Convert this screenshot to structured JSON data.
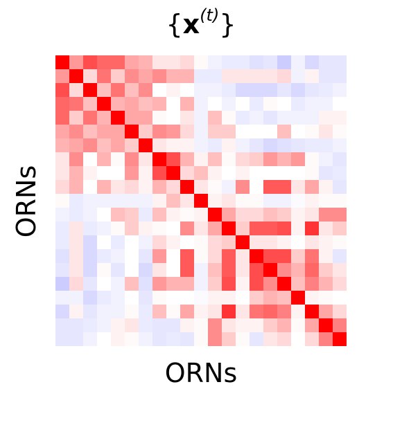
{
  "chart_data": {
    "type": "heatmap",
    "title_text": "{x(t)}",
    "title_parts": {
      "open": "{",
      "var": "x",
      "sup": "(t)",
      "close": "}"
    },
    "xlabel": "ORNs",
    "ylabel": "ORNs",
    "colormap": {
      "negative": "#0000ff",
      "zero": "#ffffff",
      "positive": "#ff0000"
    },
    "vmin": -1,
    "vmax": 1,
    "values": [
      [
        1.0,
        0.4,
        0.7,
        0.6,
        0.6,
        0.35,
        0.3,
        0.1,
        0.1,
        0.15,
        0.02,
        -0.05,
        -0.08,
        -0.08,
        -0.12,
        -0.1,
        -0.2,
        -0.05,
        -0.15,
        -0.1,
        -0.1
      ],
      [
        0.4,
        1.0,
        0.15,
        0.55,
        0.2,
        0.45,
        0.35,
        0.45,
        0.3,
        0.3,
        -0.08,
        -0.08,
        0.1,
        0.1,
        0.1,
        0.1,
        0.15,
        -0.05,
        0.05,
        -0.1,
        -0.1
      ],
      [
        0.7,
        0.15,
        1.0,
        0.25,
        0.55,
        0.25,
        0.45,
        0.0,
        0.05,
        0.0,
        -0.05,
        -0.05,
        -0.08,
        -0.15,
        -0.15,
        -0.15,
        -0.1,
        -0.15,
        -0.1,
        -0.08,
        -0.05
      ],
      [
        0.6,
        0.55,
        0.25,
        1.0,
        0.3,
        0.35,
        0.25,
        0.3,
        0.0,
        0.3,
        -0.05,
        0.0,
        -0.05,
        0.0,
        -0.08,
        0.02,
        0.0,
        -0.08,
        -0.05,
        -0.05,
        0.0
      ],
      [
        0.6,
        0.2,
        0.55,
        0.3,
        1.0,
        0.35,
        0.35,
        0.02,
        0.0,
        0.1,
        -0.05,
        0.25,
        0.02,
        -0.08,
        -0.05,
        -0.1,
        -0.05,
        -0.05,
        -0.05,
        0.05,
        0.05
      ],
      [
        0.35,
        0.45,
        0.25,
        0.35,
        0.35,
        1.0,
        0.2,
        0.45,
        0.4,
        0.15,
        -0.05,
        0.2,
        0.2,
        0.0,
        0.0,
        0.0,
        0.25,
        0.0,
        0.02,
        0.1,
        0.02
      ],
      [
        0.3,
        0.35,
        0.45,
        0.25,
        0.35,
        0.2,
        1.0,
        0.1,
        0.05,
        0.05,
        -0.05,
        -0.08,
        0.05,
        -0.05,
        -0.1,
        -0.15,
        -0.12,
        -0.1,
        -0.08,
        -0.08,
        -0.05
      ],
      [
        0.1,
        0.45,
        0.0,
        0.3,
        0.02,
        0.45,
        0.1,
        1.0,
        0.7,
        0.3,
        0.05,
        0.25,
        0.02,
        0.15,
        0.2,
        0.4,
        0.3,
        0.4,
        0.02,
        -0.05,
        -0.1
      ],
      [
        0.1,
        0.3,
        0.05,
        0.0,
        0.0,
        0.4,
        0.05,
        0.7,
        1.0,
        0.15,
        0.25,
        0.05,
        0.0,
        0.05,
        0.0,
        0.0,
        0.0,
        0.0,
        0.02,
        -0.1,
        -0.08
      ],
      [
        0.15,
        0.3,
        0.0,
        0.3,
        0.1,
        0.15,
        0.05,
        0.3,
        0.15,
        1.0,
        0.1,
        0.02,
        -0.05,
        0.45,
        0.0,
        0.65,
        0.65,
        0.1,
        0.35,
        0.05,
        -0.1
      ],
      [
        0.02,
        -0.08,
        -0.05,
        -0.05,
        -0.05,
        -0.05,
        -0.05,
        0.05,
        0.25,
        0.1,
        1.0,
        0.05,
        0.1,
        0.02,
        0.02,
        -0.05,
        -0.05,
        -0.02,
        0.05,
        0.02,
        0.02
      ],
      [
        -0.05,
        -0.08,
        -0.05,
        0.0,
        0.25,
        0.2,
        -0.08,
        0.25,
        0.05,
        0.02,
        0.05,
        1.0,
        0.35,
        0.15,
        0.15,
        0.25,
        0.2,
        0.05,
        0.1,
        0.45,
        0.45
      ],
      [
        -0.08,
        0.1,
        -0.08,
        -0.05,
        0.02,
        0.2,
        0.05,
        0.02,
        0.0,
        0.45,
        0.1,
        0.35,
        1.0,
        0.2,
        0.65,
        0.65,
        0.7,
        0.05,
        0.8,
        0.1,
        0.2
      ],
      [
        -0.08,
        0.1,
        -0.15,
        0.0,
        -0.08,
        0.0,
        -0.05,
        0.15,
        0.05,
        0.0,
        0.02,
        0.15,
        0.2,
        1.0,
        0.1,
        0.1,
        0.05,
        0.0,
        0.1,
        0.05,
        0.02
      ],
      [
        -0.12,
        0.1,
        -0.15,
        -0.08,
        -0.05,
        0.0,
        -0.1,
        0.4,
        0.0,
        0.65,
        0.02,
        0.15,
        0.65,
        0.1,
        1.0,
        0.7,
        0.7,
        0.2,
        0.55,
        0.05,
        -0.1
      ],
      [
        -0.1,
        0.1,
        -0.15,
        0.02,
        -0.1,
        0.0,
        -0.15,
        0.1,
        0.0,
        0.65,
        -0.05,
        0.25,
        0.65,
        0.1,
        0.7,
        1.0,
        0.45,
        0.3,
        0.6,
        0.2,
        0.1
      ],
      [
        -0.2,
        0.15,
        -0.1,
        0.0,
        -0.05,
        0.25,
        -0.12,
        0.4,
        0.3,
        0.3,
        -0.05,
        0.2,
        0.7,
        0.05,
        0.7,
        0.45,
        1.0,
        0.25,
        0.5,
        0.3,
        0.15
      ],
      [
        -0.05,
        -0.05,
        -0.15,
        -0.08,
        -0.05,
        0.0,
        -0.1,
        0.02,
        0.0,
        0.0,
        -0.02,
        0.05,
        0.05,
        0.0,
        0.2,
        0.3,
        0.25,
        1.0,
        0.05,
        0.02,
        0.0
      ],
      [
        -0.15,
        0.05,
        -0.1,
        -0.05,
        -0.05,
        0.02,
        -0.08,
        0.25,
        0.02,
        0.35,
        0.05,
        0.1,
        0.8,
        0.1,
        0.55,
        0.6,
        0.5,
        0.05,
        1.0,
        0.35,
        0.15
      ],
      [
        -0.1,
        -0.1,
        -0.08,
        -0.05,
        0.05,
        0.1,
        -0.08,
        -0.1,
        -0.1,
        0.05,
        0.02,
        0.45,
        0.1,
        0.05,
        0.05,
        0.2,
        0.3,
        0.02,
        0.35,
        1.0,
        0.5
      ],
      [
        -0.1,
        -0.1,
        -0.05,
        0.0,
        0.05,
        0.02,
        -0.05,
        -0.1,
        -0.08,
        -0.1,
        0.02,
        0.45,
        0.2,
        0.02,
        -0.1,
        0.1,
        0.15,
        0.0,
        0.15,
        0.5,
        1.0
      ]
    ]
  }
}
